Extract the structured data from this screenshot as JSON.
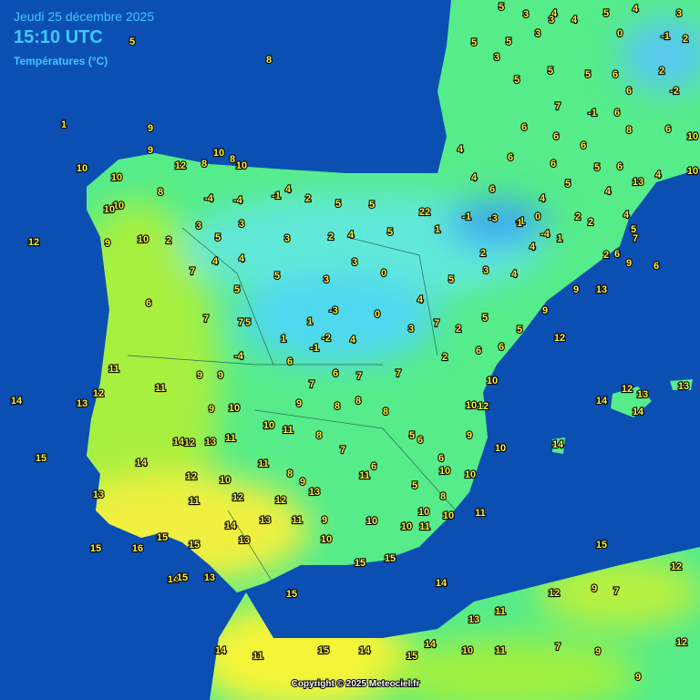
{
  "header": {
    "date": "Jeudi 25 décembre 2025",
    "time": "15:10 UTC",
    "subtitle": "Températures (°C)"
  },
  "stations": [
    5,
    8,
    1,
    9,
    9,
    10,
    10,
    8,
    12,
    8,
    10,
    10,
    10,
    10,
    12,
    9,
    10,
    8,
    -4,
    -4,
    -1,
    4,
    2,
    5,
    5,
    3,
    3,
    5,
    2,
    3,
    2,
    4,
    5,
    22,
    1,
    -1,
    -3,
    -1,
    0,
    -4,
    1,
    2,
    2,
    4,
    4,
    5,
    3,
    3,
    0,
    4,
    5,
    3,
    4,
    4,
    2,
    1,
    7,
    5,
    6,
    7,
    7,
    5,
    1,
    1,
    -3,
    0,
    3,
    7,
    2,
    5,
    5,
    9,
    -2,
    4,
    -1,
    -4,
    6,
    7,
    6,
    7,
    7,
    2,
    6,
    6,
    12,
    10,
    10,
    12,
    10,
    9,
    9,
    9,
    11,
    11,
    12,
    13,
    14,
    15,
    13,
    15,
    16,
    15,
    15,
    14,
    15,
    13,
    14,
    13,
    13,
    12,
    11,
    9,
    10,
    10,
    10,
    11,
    10,
    10,
    11,
    15,
    15,
    14,
    15,
    15,
    12,
    12,
    9,
    7,
    11,
    13,
    10,
    11,
    7,
    9,
    9,
    12,
    15,
    14,
    14,
    11,
    15,
    14,
    14,
    13,
    13,
    12,
    14,
    14,
    10,
    9,
    9,
    8,
    8,
    8,
    10,
    11,
    8,
    7,
    5,
    6,
    6,
    10,
    14,
    12,
    13,
    11,
    14,
    12,
    10,
    12,
    11,
    11,
    8,
    9,
    13,
    11,
    6,
    10,
    5,
    8,
    5,
    3,
    4,
    5,
    4,
    3,
    0,
    -1,
    2,
    5,
    3,
    3,
    4,
    3,
    5,
    5,
    5,
    5,
    6,
    6,
    2,
    -2,
    -1,
    6,
    7,
    6,
    6,
    8,
    6,
    10,
    6,
    6,
    4,
    6,
    6,
    5,
    4,
    10,
    13,
    4,
    6,
    4,
    5,
    4,
    4,
    5,
    7,
    6,
    2,
    9,
    6,
    9,
    13,
    8,
    12
  ],
  "footer": {
    "copyright": "Copyright © 2025 Meteociel.fr"
  }
}
